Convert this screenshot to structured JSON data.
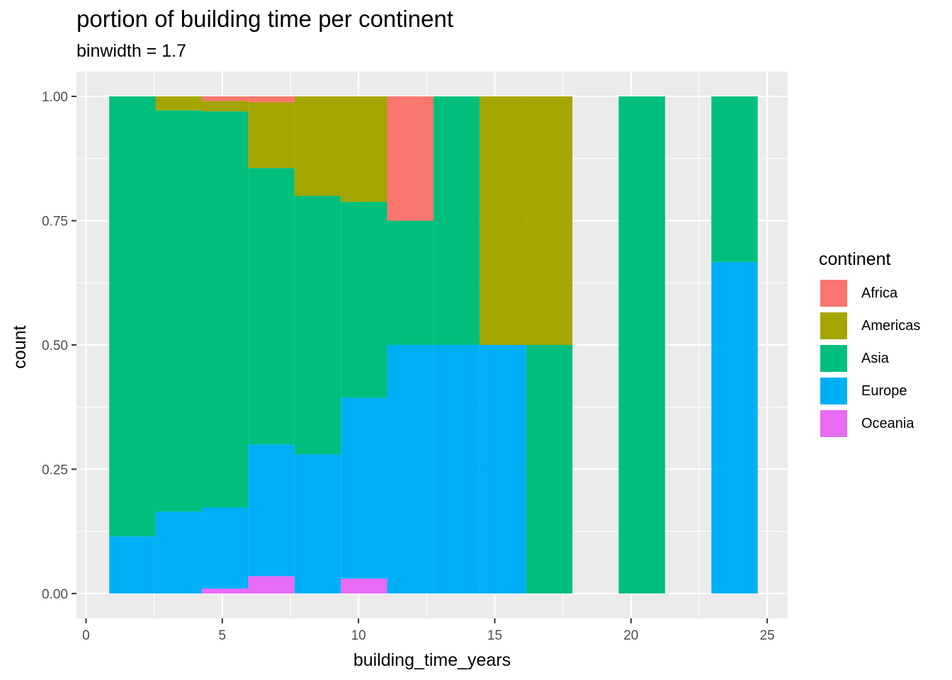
{
  "chart_data": {
    "type": "bar",
    "title": "portion of building time per continent",
    "subtitle": "binwidth = 1.7",
    "xlabel": "building_time_years",
    "ylabel": "count",
    "xlim": [
      -0.35,
      25.75
    ],
    "ylim": [
      -0.05,
      1.05
    ],
    "x_ticks": [
      0,
      5,
      10,
      15,
      20,
      25
    ],
    "y_ticks": [
      0,
      0.25,
      0.5,
      0.75,
      1
    ],
    "y_tick_labels": [
      "0.00",
      "0.25",
      "0.50",
      "0.75",
      "1.00"
    ],
    "grid": true,
    "position": "fill",
    "legend": {
      "title": "continent",
      "placement": "right"
    },
    "series": [
      {
        "name": "Africa",
        "color": "#F8766D"
      },
      {
        "name": "Americas",
        "color": "#A3A500"
      },
      {
        "name": "Asia",
        "color": "#00BF7D"
      },
      {
        "name": "Europe",
        "color": "#00B0F6"
      },
      {
        "name": "Oceania",
        "color": "#E76BF3"
      }
    ],
    "bins": [
      {
        "x0": 0.85,
        "x1": 2.55,
        "proportions": {
          "Oceania": 0,
          "Europe": 0.115,
          "Asia": 0.885,
          "Americas": 0,
          "Africa": 0
        }
      },
      {
        "x0": 2.55,
        "x1": 4.25,
        "proportions": {
          "Oceania": 0,
          "Europe": 0.165,
          "Asia": 0.807,
          "Americas": 0.028,
          "Africa": 0
        }
      },
      {
        "x0": 4.25,
        "x1": 5.95,
        "proportions": {
          "Oceania": 0.01,
          "Europe": 0.163,
          "Asia": 0.797,
          "Americas": 0.021,
          "Africa": 0.009
        }
      },
      {
        "x0": 5.95,
        "x1": 7.65,
        "proportions": {
          "Oceania": 0.035,
          "Europe": 0.265,
          "Asia": 0.556,
          "Americas": 0.132,
          "Africa": 0.012
        }
      },
      {
        "x0": 7.65,
        "x1": 9.35,
        "proportions": {
          "Oceania": 0,
          "Europe": 0.28,
          "Asia": 0.52,
          "Americas": 0.2,
          "Africa": 0
        }
      },
      {
        "x0": 9.35,
        "x1": 11.05,
        "proportions": {
          "Oceania": 0.03,
          "Europe": 0.364,
          "Asia": 0.394,
          "Americas": 0.212,
          "Africa": 0
        }
      },
      {
        "x0": 11.05,
        "x1": 12.75,
        "proportions": {
          "Oceania": 0,
          "Europe": 0.5,
          "Asia": 0.25,
          "Americas": 0,
          "Africa": 0.25
        }
      },
      {
        "x0": 12.75,
        "x1": 14.45,
        "proportions": {
          "Oceania": 0,
          "Europe": 0.5,
          "Asia": 0.5,
          "Americas": 0,
          "Africa": 0
        }
      },
      {
        "x0": 14.45,
        "x1": 16.15,
        "proportions": {
          "Oceania": 0,
          "Europe": 0.5,
          "Asia": 0,
          "Americas": 0.5,
          "Africa": 0
        }
      },
      {
        "x0": 16.15,
        "x1": 17.85,
        "proportions": {
          "Oceania": 0,
          "Europe": 0,
          "Asia": 0.5,
          "Americas": 0.5,
          "Africa": 0
        }
      },
      {
        "x0": 19.55,
        "x1": 21.25,
        "proportions": {
          "Oceania": 0,
          "Europe": 0,
          "Asia": 1,
          "Americas": 0,
          "Africa": 0
        }
      },
      {
        "x0": 22.95,
        "x1": 24.65,
        "proportions": {
          "Oceania": 0,
          "Europe": 0.667,
          "Asia": 0.333,
          "Americas": 0,
          "Africa": 0
        }
      }
    ]
  }
}
